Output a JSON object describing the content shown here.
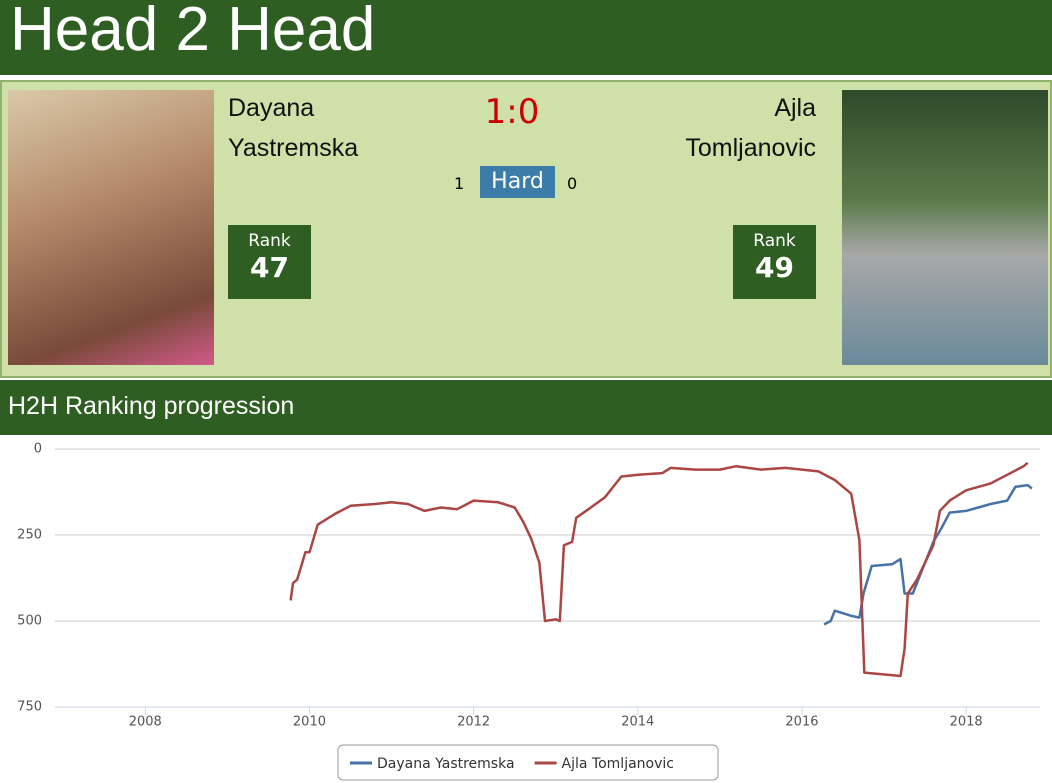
{
  "header": {
    "title": "Head 2 Head"
  },
  "match": {
    "score": "1:0",
    "surface": "Hard",
    "surface_wins": [
      1,
      0
    ],
    "rank_label": "Rank"
  },
  "players": [
    {
      "name": "Dayana Yastremska",
      "rank": 47
    },
    {
      "name": "Ajla Tomljanovic",
      "rank": 49
    }
  ],
  "section": {
    "title": "H2H Ranking progression"
  },
  "chart_data": {
    "type": "line",
    "yreverse": true,
    "grid": true,
    "xlim": [
      2006.9,
      2018.9
    ],
    "xticks": [
      2008,
      2010,
      2012,
      2014,
      2016,
      2018
    ],
    "ylim": [
      0,
      750
    ],
    "yticks": [
      0,
      250,
      500,
      750
    ],
    "series": [
      {
        "name": "Dayana Yastremska",
        "color": "#4572a7",
        "x": [
          2016.27,
          2016.35,
          2016.4,
          2016.6,
          2016.7,
          2016.75,
          2016.85,
          2017.1,
          2017.2,
          2017.25,
          2017.35,
          2017.45,
          2017.6,
          2017.7,
          2017.8,
          2018.0,
          2018.3,
          2018.5,
          2018.6,
          2018.75,
          2018.8
        ],
        "values": [
          510,
          500,
          470,
          485,
          490,
          420,
          340,
          335,
          320,
          420,
          420,
          360,
          270,
          230,
          185,
          180,
          160,
          150,
          110,
          105,
          115
        ]
      },
      {
        "name": "Ajla Tomljanovic",
        "color": "#aa4643",
        "x": [
          2009.77,
          2009.8,
          2009.85,
          2009.9,
          2009.95,
          2010.0,
          2010.1,
          2010.3,
          2010.5,
          2010.8,
          2011.0,
          2011.2,
          2011.4,
          2011.6,
          2011.8,
          2012.0,
          2012.3,
          2012.5,
          2012.6,
          2012.7,
          2012.8,
          2012.87,
          2013.0,
          2013.05,
          2013.1,
          2013.2,
          2013.25,
          2013.4,
          2013.6,
          2013.8,
          2014.0,
          2014.3,
          2014.4,
          2014.7,
          2015.0,
          2015.2,
          2015.5,
          2015.8,
          2016.0,
          2016.2,
          2016.4,
          2016.6,
          2016.7,
          2016.76,
          2017.2,
          2017.25,
          2017.29,
          2017.4,
          2017.5,
          2017.6,
          2017.68,
          2017.8,
          2018.0,
          2018.3,
          2018.5,
          2018.7,
          2018.75
        ],
        "values": [
          440,
          390,
          380,
          340,
          300,
          300,
          220,
          190,
          165,
          160,
          155,
          160,
          180,
          170,
          175,
          150,
          155,
          170,
          210,
          260,
          330,
          500,
          495,
          500,
          280,
          270,
          200,
          175,
          140,
          80,
          75,
          70,
          55,
          60,
          60,
          50,
          60,
          55,
          60,
          65,
          90,
          130,
          265,
          650,
          660,
          580,
          420,
          380,
          330,
          280,
          180,
          150,
          120,
          100,
          75,
          50,
          40
        ]
      }
    ]
  }
}
